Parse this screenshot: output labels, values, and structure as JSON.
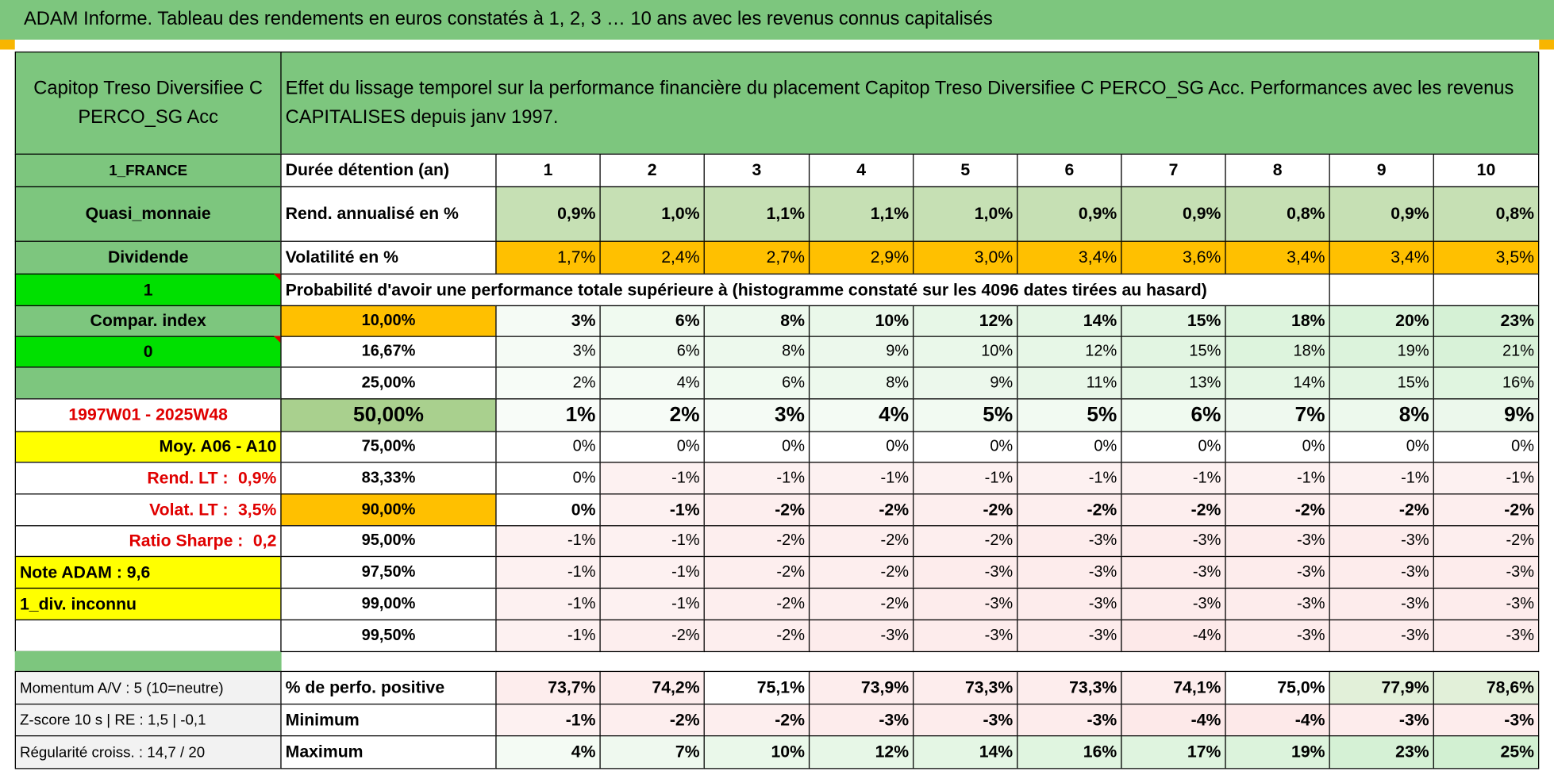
{
  "title": "ADAM Informe. Tableau des rendements en euros constatés à 1, 2, 3 … 10 ans avec les revenus connus capitalisés",
  "header": {
    "fund_name": "Capitop Treso Diversifiee C PERCO_SG Acc",
    "description": "Effet du lissage temporel sur la performance financière du placement Capitop Treso Diversifiee C PERCO_SG Acc. Performances avec les revenus CAPITALISES depuis janv 1997."
  },
  "sidebar": {
    "country": "1_FRANCE",
    "category": "Quasi_monnaie",
    "dividend": "Dividende",
    "flag_1": "1",
    "compar_index": "Compar. index",
    "flag_0": "0",
    "period": "1997W01 - 2025W48",
    "moy": "Moy. A06 - A10",
    "rend_lt_label": "Rend. LT :",
    "rend_lt_value": "0,9%",
    "volat_lt_label": "Volat. LT :",
    "volat_lt_value": "3,5%",
    "sharpe_label": "Ratio Sharpe :",
    "sharpe_value": "0,2",
    "note": "Note ADAM : 9,6",
    "div_status": "1_div. inconnu",
    "momentum": "Momentum A/V : 5 (10=neutre)",
    "zscore": "Z-score 10 s | RE : 1,5 | -0,1",
    "regularity": "Régularité croiss. : 14,7 / 20"
  },
  "table": {
    "duration": {
      "label": "Durée détention (an)",
      "values": [
        1,
        2,
        3,
        4,
        5,
        6,
        7,
        8,
        9,
        10
      ]
    },
    "rend": {
      "label": "Rend. annualisé en %",
      "values": [
        "0,9%",
        "1,0%",
        "1,1%",
        "1,1%",
        "1,0%",
        "0,9%",
        "0,9%",
        "0,8%",
        "0,9%",
        "0,8%"
      ]
    },
    "vol": {
      "label": "Volatilité en %",
      "values": [
        "1,7%",
        "2,4%",
        "2,7%",
        "2,9%",
        "3,0%",
        "3,4%",
        "3,6%",
        "3,4%",
        "3,4%",
        "3,5%"
      ]
    },
    "prob_header": "Probabilité d'avoir une performance totale supérieure à (histogramme constaté sur les 4096 dates tirées au hasard)",
    "prob_rows": [
      {
        "threshold": "10,00%",
        "values": [
          "3%",
          "6%",
          "8%",
          "10%",
          "12%",
          "14%",
          "15%",
          "18%",
          "20%",
          "23%"
        ]
      },
      {
        "threshold": "16,67%",
        "values": [
          "3%",
          "6%",
          "8%",
          "9%",
          "10%",
          "12%",
          "15%",
          "18%",
          "19%",
          "21%"
        ]
      },
      {
        "threshold": "25,00%",
        "values": [
          "2%",
          "4%",
          "6%",
          "8%",
          "9%",
          "11%",
          "13%",
          "14%",
          "15%",
          "16%"
        ]
      },
      {
        "threshold": "50,00%",
        "values": [
          "1%",
          "2%",
          "3%",
          "4%",
          "5%",
          "5%",
          "6%",
          "7%",
          "8%",
          "9%"
        ]
      },
      {
        "threshold": "75,00%",
        "values": [
          "0%",
          "0%",
          "0%",
          "0%",
          "0%",
          "0%",
          "0%",
          "0%",
          "0%",
          "0%"
        ]
      },
      {
        "threshold": "83,33%",
        "values": [
          "0%",
          "-1%",
          "-1%",
          "-1%",
          "-1%",
          "-1%",
          "-1%",
          "-1%",
          "-1%",
          "-1%"
        ]
      },
      {
        "threshold": "90,00%",
        "values": [
          "0%",
          "-1%",
          "-2%",
          "-2%",
          "-2%",
          "-2%",
          "-2%",
          "-2%",
          "-2%",
          "-2%"
        ]
      },
      {
        "threshold": "95,00%",
        "values": [
          "-1%",
          "-1%",
          "-2%",
          "-2%",
          "-2%",
          "-3%",
          "-3%",
          "-3%",
          "-3%",
          "-2%"
        ]
      },
      {
        "threshold": "97,50%",
        "values": [
          "-1%",
          "-1%",
          "-2%",
          "-2%",
          "-3%",
          "-3%",
          "-3%",
          "-3%",
          "-3%",
          "-3%"
        ]
      },
      {
        "threshold": "99,00%",
        "values": [
          "-1%",
          "-1%",
          "-2%",
          "-2%",
          "-3%",
          "-3%",
          "-3%",
          "-3%",
          "-3%",
          "-3%"
        ]
      },
      {
        "threshold": "99,50%",
        "values": [
          "-1%",
          "-2%",
          "-2%",
          "-3%",
          "-3%",
          "-3%",
          "-4%",
          "-3%",
          "-3%",
          "-3%"
        ]
      }
    ],
    "stats": [
      {
        "label": "% de perfo. positive",
        "values": [
          "73,7%",
          "74,2%",
          "75,1%",
          "73,9%",
          "73,3%",
          "73,3%",
          "74,1%",
          "75,0%",
          "77,9%",
          "78,6%"
        ]
      },
      {
        "label": "Minimum",
        "values": [
          "-1%",
          "-2%",
          "-2%",
          "-3%",
          "-3%",
          "-3%",
          "-4%",
          "-4%",
          "-3%",
          "-3%"
        ]
      },
      {
        "label": "Maximum",
        "values": [
          "4%",
          "7%",
          "10%",
          "12%",
          "14%",
          "16%",
          "17%",
          "19%",
          "23%",
          "25%"
        ]
      }
    ]
  }
}
